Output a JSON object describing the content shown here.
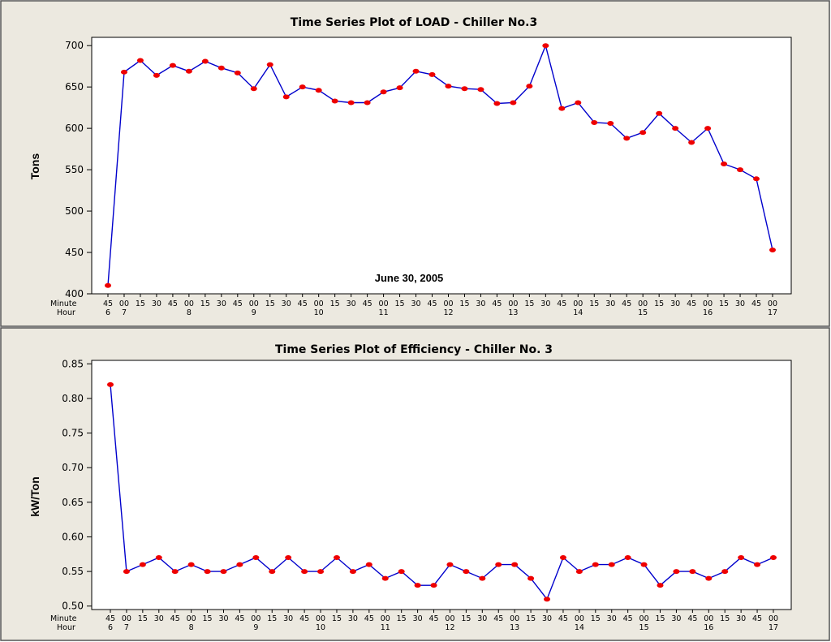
{
  "chart_data": [
    {
      "type": "line",
      "title": "Time Series Plot of LOAD - Chiller No.3",
      "ylabel": "Tons",
      "annotation": "June 30, 2005",
      "ylim": [
        400,
        710
      ],
      "yticks": [
        400,
        450,
        500,
        550,
        600,
        650,
        700
      ],
      "ytick_labels": [
        "400",
        "450",
        "500",
        "550",
        "600",
        "650",
        "700"
      ],
      "x_row_labels": [
        "Minute",
        "Hour"
      ],
      "x_minutes": [
        "45",
        "00",
        "15",
        "30",
        "45",
        "00",
        "15",
        "30",
        "45",
        "00",
        "15",
        "30",
        "45",
        "00",
        "15",
        "30",
        "45",
        "00",
        "15",
        "30",
        "45",
        "00",
        "15",
        "30",
        "45",
        "00",
        "15",
        "30",
        "45",
        "00",
        "15",
        "30",
        "45",
        "00",
        "15",
        "30",
        "45",
        "00",
        "15",
        "30",
        "45",
        "00"
      ],
      "x_hours": [
        {
          "index": 0,
          "label": "6"
        },
        {
          "index": 1,
          "label": "7"
        },
        {
          "index": 5,
          "label": "8"
        },
        {
          "index": 9,
          "label": "9"
        },
        {
          "index": 13,
          "label": "10"
        },
        {
          "index": 17,
          "label": "11"
        },
        {
          "index": 21,
          "label": "12"
        },
        {
          "index": 25,
          "label": "13"
        },
        {
          "index": 29,
          "label": "14"
        },
        {
          "index": 33,
          "label": "15"
        },
        {
          "index": 37,
          "label": "16"
        },
        {
          "index": 41,
          "label": "17"
        }
      ],
      "values": [
        410,
        668,
        682,
        664,
        676,
        669,
        681,
        673,
        667,
        648,
        677,
        638,
        650,
        646,
        633,
        631,
        631,
        644,
        649,
        669,
        665,
        651,
        648,
        647,
        630,
        631,
        651,
        700,
        624,
        631,
        607,
        606,
        588,
        595,
        618,
        600,
        583,
        600,
        557,
        550,
        539,
        453
      ],
      "line_color": "#0000cc",
      "marker_color": "#ee0000"
    },
    {
      "type": "line",
      "title": "Time Series Plot of Efficiency - Chiller No. 3",
      "ylabel": "kW/Ton",
      "ylim": [
        0.495,
        0.855
      ],
      "yticks": [
        0.5,
        0.55,
        0.6,
        0.65,
        0.7,
        0.75,
        0.8,
        0.85
      ],
      "ytick_labels": [
        "0.50",
        "0.55",
        "0.60",
        "0.65",
        "0.70",
        "0.75",
        "0.80",
        "0.85"
      ],
      "x_row_labels": [
        "Minute",
        "Hour"
      ],
      "x_minutes": [
        "45",
        "00",
        "15",
        "30",
        "45",
        "00",
        "15",
        "30",
        "45",
        "00",
        "15",
        "30",
        "45",
        "00",
        "15",
        "30",
        "45",
        "00",
        "15",
        "30",
        "45",
        "00",
        "15",
        "30",
        "45",
        "00",
        "15",
        "30",
        "45",
        "00",
        "15",
        "30",
        "45",
        "00",
        "15",
        "30",
        "45",
        "00",
        "15",
        "30",
        "45",
        "00"
      ],
      "x_hours": [
        {
          "index": 0,
          "label": "6"
        },
        {
          "index": 1,
          "label": "7"
        },
        {
          "index": 5,
          "label": "8"
        },
        {
          "index": 9,
          "label": "9"
        },
        {
          "index": 13,
          "label": "10"
        },
        {
          "index": 17,
          "label": "11"
        },
        {
          "index": 21,
          "label": "12"
        },
        {
          "index": 25,
          "label": "13"
        },
        {
          "index": 29,
          "label": "14"
        },
        {
          "index": 33,
          "label": "15"
        },
        {
          "index": 37,
          "label": "16"
        },
        {
          "index": 41,
          "label": "17"
        }
      ],
      "values": [
        0.82,
        0.55,
        0.56,
        0.57,
        0.55,
        0.56,
        0.55,
        0.55,
        0.56,
        0.57,
        0.55,
        0.57,
        0.55,
        0.55,
        0.57,
        0.55,
        0.56,
        0.54,
        0.55,
        0.53,
        0.53,
        0.56,
        0.55,
        0.54,
        0.56,
        0.56,
        0.54,
        0.51,
        0.57,
        0.55,
        0.56,
        0.56,
        0.57,
        0.56,
        0.53,
        0.55,
        0.55,
        0.54,
        0.55,
        0.57,
        0.56,
        0.57
      ],
      "line_color": "#0000cc",
      "marker_color": "#ee0000"
    }
  ]
}
